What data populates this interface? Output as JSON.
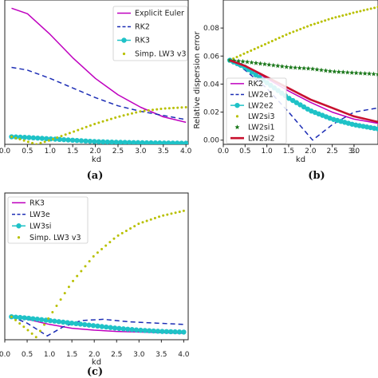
{
  "chart_data": [
    {
      "type": "line",
      "caption": "(a)",
      "xlabel": "kd",
      "ylabel": "",
      "xlim": [
        0,
        4.05
      ],
      "ylim": [
        0,
        1.05
      ],
      "x_ticks": [
        "0.0",
        "0.5",
        "1.0",
        "1.5",
        "2.0",
        "2.5",
        "3.0",
        "3.5",
        "4.0"
      ],
      "y_ticks": [],
      "legend_position": "top-right",
      "series": [
        {
          "name": "Explicit Euler",
          "color": "#bf00bf",
          "style": "solid",
          "x": [
            0.15,
            0.5,
            1.0,
            1.5,
            2.0,
            2.5,
            3.0,
            3.5,
            4.0
          ],
          "y": [
            0.99,
            0.95,
            0.8,
            0.63,
            0.48,
            0.36,
            0.27,
            0.2,
            0.16
          ]
        },
        {
          "name": "RK2",
          "color": "#1c2db5",
          "style": "dashed",
          "x": [
            0.15,
            0.5,
            1.0,
            1.5,
            2.0,
            2.5,
            3.0,
            3.5,
            4.0
          ],
          "y": [
            0.56,
            0.54,
            0.48,
            0.41,
            0.34,
            0.28,
            0.24,
            0.21,
            0.18
          ]
        },
        {
          "name": "RK3",
          "color": "#1fc2c7",
          "style": "dots",
          "x": [
            0.15,
            0.5,
            1.0,
            1.5,
            2.0,
            2.5,
            3.0,
            3.5,
            4.0
          ],
          "y": [
            0.055,
            0.05,
            0.04,
            0.03,
            0.02,
            0.015,
            0.012,
            0.01,
            0.008
          ]
        },
        {
          "name": "Simp. LW3 v3",
          "color": "#b8c000",
          "style": "dotted",
          "x": [
            0.15,
            0.5,
            0.7,
            1.0,
            1.5,
            2.0,
            2.5,
            3.0,
            3.5,
            4.0
          ],
          "y": [
            0.055,
            0.02,
            0.0,
            0.03,
            0.09,
            0.15,
            0.2,
            0.24,
            0.26,
            0.27
          ]
        }
      ]
    },
    {
      "type": "line",
      "caption": "(b)",
      "xlabel": "kd",
      "ylabel": "Relative dispersion error",
      "xlim": [
        0,
        3.55
      ],
      "ylim": [
        -0.003,
        0.1
      ],
      "x_ticks": [
        "0.0",
        "0.5",
        "1.0",
        "1.5",
        "2.0",
        "2.5",
        "3.0",
        "3."
      ],
      "y_ticks": [
        "0.00",
        "0.02",
        "0.04",
        "0.06",
        "0.08"
      ],
      "legend_position": "bottom-left",
      "series": [
        {
          "name": "RK2",
          "color": "#bf00bf",
          "style": "solid",
          "x": [
            0.15,
            0.5,
            1.0,
            1.5,
            2.0,
            2.5,
            3.0,
            3.55
          ],
          "y": [
            0.057,
            0.053,
            0.044,
            0.035,
            0.027,
            0.02,
            0.015,
            0.012
          ]
        },
        {
          "name": "LW2e1",
          "color": "#1c2db5",
          "style": "dashed",
          "x": [
            0.15,
            0.5,
            1.0,
            1.5,
            2.05,
            2.5,
            3.0,
            3.55
          ],
          "y": [
            0.057,
            0.05,
            0.037,
            0.02,
            0.0,
            0.011,
            0.02,
            0.023
          ]
        },
        {
          "name": "LW2e2",
          "color": "#1fc2c7",
          "style": "dots",
          "x": [
            0.15,
            0.5,
            1.0,
            1.5,
            2.0,
            2.5,
            3.0,
            3.55
          ],
          "y": [
            0.057,
            0.052,
            0.041,
            0.03,
            0.021,
            0.015,
            0.011,
            0.008
          ]
        },
        {
          "name": "LW2si3",
          "color": "#b8c000",
          "style": "dotted",
          "x": [
            0.15,
            0.5,
            1.0,
            1.5,
            2.0,
            2.5,
            3.0,
            3.55
          ],
          "y": [
            0.057,
            0.062,
            0.069,
            0.076,
            0.082,
            0.087,
            0.091,
            0.095
          ]
        },
        {
          "name": "LW2si1",
          "color": "#1e7a1e",
          "style": "stars",
          "x": [
            0.15,
            0.5,
            1.0,
            1.5,
            2.0,
            2.5,
            3.0,
            3.55
          ],
          "y": [
            0.057,
            0.056,
            0.054,
            0.052,
            0.051,
            0.049,
            0.048,
            0.047
          ]
        },
        {
          "name": "LW2si2",
          "color": "#c8102e",
          "style": "thick",
          "x": [
            0.15,
            0.5,
            1.0,
            1.5,
            2.0,
            2.5,
            3.0,
            3.55
          ],
          "y": [
            0.057,
            0.053,
            0.045,
            0.037,
            0.029,
            0.023,
            0.017,
            0.013
          ]
        }
      ]
    },
    {
      "type": "line",
      "caption": "(c)",
      "xlabel": "kd",
      "ylabel": "",
      "xlim": [
        0,
        4.1
      ],
      "ylim": [
        -0.03,
        1.12
      ],
      "x_ticks": [
        "0.0",
        "0.5",
        "1.0",
        "1.5",
        "2.0",
        "2.5",
        "3.0",
        "3.5",
        "4.0"
      ],
      "y_ticks": [],
      "legend_position": "top-left",
      "series": [
        {
          "name": "RK3",
          "color": "#bf00bf",
          "style": "solid",
          "x": [
            0.15,
            0.5,
            1.0,
            1.5,
            2.0,
            2.5,
            3.0,
            3.5,
            4.0
          ],
          "y": [
            0.15,
            0.13,
            0.09,
            0.06,
            0.045,
            0.035,
            0.03,
            0.025,
            0.02
          ]
        },
        {
          "name": "LW3e",
          "color": "#1c2db5",
          "style": "dashed",
          "x": [
            0.15,
            0.5,
            0.95,
            1.3,
            1.7,
            2.2,
            2.8,
            3.4,
            4.0
          ],
          "y": [
            0.15,
            0.1,
            0.0,
            0.07,
            0.12,
            0.13,
            0.11,
            0.1,
            0.09
          ]
        },
        {
          "name": "LW3si",
          "color": "#1fc2c7",
          "style": "dots",
          "x": [
            0.15,
            0.5,
            1.0,
            1.5,
            2.0,
            2.5,
            3.0,
            3.5,
            4.0
          ],
          "y": [
            0.15,
            0.14,
            0.12,
            0.1,
            0.08,
            0.06,
            0.045,
            0.035,
            0.03
          ]
        },
        {
          "name": "Simp. LW3 v3",
          "color": "#b8c000",
          "style": "dotted",
          "x": [
            0.15,
            0.5,
            0.7,
            1.0,
            1.5,
            2.0,
            2.5,
            3.0,
            3.5,
            4.0
          ],
          "y": [
            0.15,
            0.05,
            -0.01,
            0.15,
            0.42,
            0.63,
            0.78,
            0.88,
            0.94,
            0.98
          ]
        }
      ]
    }
  ]
}
